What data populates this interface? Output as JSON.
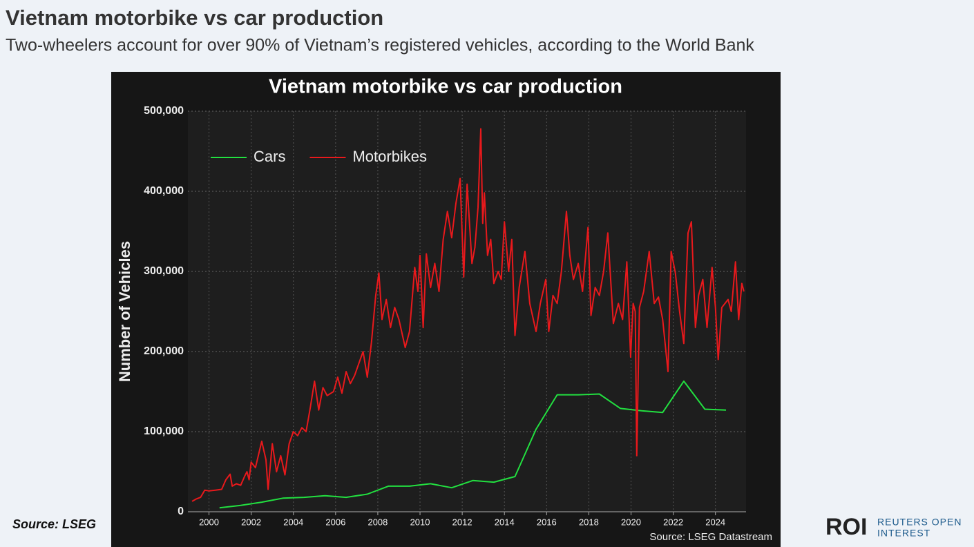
{
  "header": {
    "title": "Vietnam motorbike vs car production",
    "subtitle": "Two-wheelers account for over 90% of Vietnam’s registered vehicles, according to the World Bank"
  },
  "footer": {
    "source": "Source: LSEG"
  },
  "logo": {
    "mark": "ROI",
    "lines": [
      "REUTERS OPEN",
      "INTEREST"
    ]
  },
  "chart_data": {
    "type": "line",
    "title": "Vietnam motorbike vs car production",
    "y_label": "Number of Vehicles",
    "source": "Source: LSEG Datastream",
    "legend": "upper left",
    "grid": true,
    "xlim": [
      1999.0,
      2025.45
    ],
    "xticks": [
      2000,
      2002,
      2004,
      2006,
      2008,
      2010,
      2012,
      2014,
      2016,
      2018,
      2020,
      2022,
      2024
    ],
    "ylim": [
      0,
      500000
    ],
    "yticks": [
      0,
      {
        "value": 100000,
        "label": "100,000"
      },
      {
        "value": 200000,
        "label": "200,000"
      },
      {
        "value": 300000,
        "label": "300,000"
      },
      {
        "value": 400000,
        "label": "400,000"
      },
      {
        "value": 500000,
        "label": "500,000"
      }
    ],
    "series": [
      {
        "name": "Cars",
        "color": "#22e040",
        "x": [
          2000.5,
          2001.5,
          2002.5,
          2003.5,
          2004.5,
          2005.5,
          2006.5,
          2007.5,
          2008.5,
          2009.5,
          2010.5,
          2011.5,
          2012.5,
          2013.5,
          2014.5,
          2015.5,
          2016.5,
          2017.5,
          2018.5,
          2019.5,
          2020.5,
          2021.5,
          2022.5,
          2023.5,
          2024.5
        ],
        "values": [
          5000,
          8000,
          12000,
          17000,
          18000,
          20000,
          18000,
          22000,
          32000,
          32000,
          35000,
          30000,
          39000,
          37000,
          44000,
          103000,
          146000,
          146000,
          147000,
          129000,
          126000,
          124000,
          163000,
          128000,
          127000
        ]
      },
      {
        "name": "Motorbikes",
        "color": "#e8191c",
        "x": [
          1999.2,
          1999.4,
          1999.6,
          1999.8,
          2000.0,
          2000.3,
          2000.6,
          2000.8,
          2001.0,
          2001.1,
          2001.3,
          2001.5,
          2001.7,
          2001.8,
          2001.9,
          2002.0,
          2002.2,
          2002.5,
          2002.7,
          2002.8,
          2003.0,
          2003.2,
          2003.4,
          2003.6,
          2003.8,
          2004.0,
          2004.2,
          2004.4,
          2004.6,
          2004.8,
          2005.0,
          2005.2,
          2005.4,
          2005.6,
          2005.9,
          2006.1,
          2006.3,
          2006.5,
          2006.7,
          2006.9,
          2007.1,
          2007.3,
          2007.5,
          2007.7,
          2007.9,
          2008.05,
          2008.2,
          2008.4,
          2008.6,
          2008.8,
          2009.0,
          2009.3,
          2009.5,
          2009.75,
          2009.9,
          2010.0,
          2010.15,
          2010.3,
          2010.5,
          2010.7,
          2010.9,
          2011.1,
          2011.3,
          2011.5,
          2011.7,
          2011.9,
          2012.07,
          2012.23,
          2012.46,
          2012.6,
          2012.75,
          2012.88,
          2012.97,
          2013.05,
          2013.2,
          2013.35,
          2013.5,
          2013.7,
          2013.85,
          2014.0,
          2014.2,
          2014.35,
          2014.5,
          2014.7,
          2014.97,
          2015.2,
          2015.5,
          2015.7,
          2015.96,
          2016.1,
          2016.3,
          2016.5,
          2016.7,
          2016.94,
          2017.1,
          2017.27,
          2017.5,
          2017.7,
          2017.96,
          2018.1,
          2018.3,
          2018.5,
          2018.7,
          2018.9,
          2019.16,
          2019.4,
          2019.6,
          2019.8,
          2019.98,
          2020.1,
          2020.2,
          2020.27,
          2020.4,
          2020.6,
          2020.86,
          2021.1,
          2021.3,
          2021.5,
          2021.75,
          2021.9,
          2022.1,
          2022.3,
          2022.5,
          2022.7,
          2022.86,
          2023.05,
          2023.2,
          2023.4,
          2023.6,
          2023.84,
          2024.0,
          2024.13,
          2024.3,
          2024.45,
          2024.6,
          2024.75,
          2024.95,
          2025.1,
          2025.25,
          2025.35
        ],
        "values": [
          13000,
          16000,
          18000,
          27000,
          26000,
          27000,
          28000,
          40000,
          47000,
          32000,
          35000,
          33000,
          45000,
          50000,
          40000,
          62000,
          55000,
          88000,
          65000,
          28000,
          85000,
          50000,
          70000,
          46000,
          85000,
          100000,
          95000,
          105000,
          100000,
          130000,
          163000,
          127000,
          155000,
          145000,
          150000,
          168000,
          148000,
          175000,
          160000,
          170000,
          185000,
          200000,
          168000,
          212000,
          270000,
          298000,
          240000,
          265000,
          230000,
          255000,
          240000,
          205000,
          225000,
          305000,
          275000,
          320000,
          230000,
          322000,
          280000,
          310000,
          275000,
          340000,
          375000,
          342000,
          385000,
          416000,
          293000,
          409000,
          310000,
          330000,
          380000,
          478000,
          360000,
          398000,
          320000,
          340000,
          285000,
          300000,
          290000,
          362000,
          300000,
          340000,
          220000,
          280000,
          325000,
          260000,
          225000,
          260000,
          290000,
          225000,
          270000,
          260000,
          300000,
          375000,
          320000,
          290000,
          310000,
          275000,
          355000,
          245000,
          280000,
          270000,
          300000,
          348000,
          235000,
          260000,
          240000,
          312000,
          193000,
          260000,
          250000,
          70000,
          255000,
          275000,
          325000,
          260000,
          268000,
          240000,
          175000,
          325000,
          298000,
          250000,
          210000,
          348000,
          362000,
          230000,
          270000,
          290000,
          230000,
          305000,
          255000,
          190000,
          255000,
          260000,
          265000,
          250000,
          312000,
          240000,
          285000,
          275000
        ]
      }
    ]
  }
}
